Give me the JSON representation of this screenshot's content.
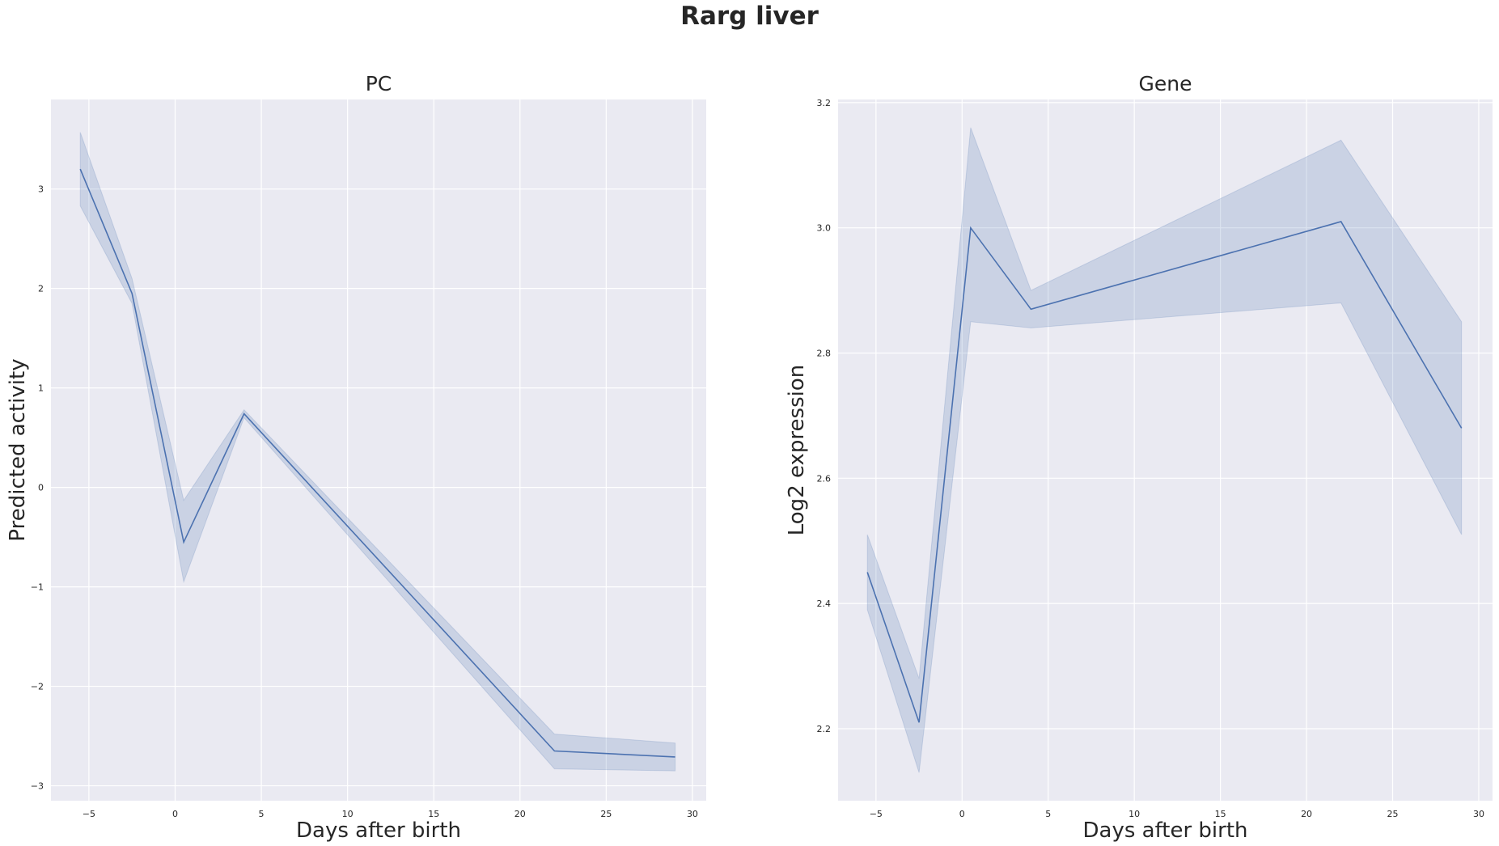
{
  "suptitle": "Rarg liver",
  "colors": {
    "line": "#4c72b0",
    "band": "#4c72b0",
    "plot_bg": "#eaeaf2",
    "grid": "#ffffff"
  },
  "chart_data": [
    {
      "type": "line",
      "title": "PC",
      "xlabel": "Days after birth",
      "ylabel": "Predicted activity",
      "xlim": [
        -7.2,
        30.8
      ],
      "ylim": [
        -3.15,
        3.9
      ],
      "xticks": [
        -5,
        0,
        5,
        10,
        15,
        20,
        25,
        30
      ],
      "yticks": [
        -3,
        -2,
        -1,
        0,
        1,
        2,
        3
      ],
      "grid": true,
      "x": [
        -5.5,
        -2.5,
        0.5,
        4,
        22,
        29
      ],
      "y": [
        3.2,
        1.95,
        -0.55,
        0.74,
        -2.65,
        -2.71
      ],
      "ci_low": [
        2.83,
        1.85,
        -0.95,
        0.7,
        -2.83,
        -2.85
      ],
      "ci_high": [
        3.57,
        2.1,
        -0.13,
        0.78,
        -2.48,
        -2.57
      ]
    },
    {
      "type": "line",
      "title": "Gene",
      "xlabel": "Days after birth",
      "ylabel": "Log2 expression",
      "xlim": [
        -7.2,
        30.8
      ],
      "ylim": [
        2.085,
        3.205
      ],
      "xticks": [
        -5,
        0,
        5,
        10,
        15,
        20,
        25,
        30
      ],
      "yticks": [
        2.2,
        2.4,
        2.6,
        2.8,
        3.0,
        3.2
      ],
      "grid": true,
      "x": [
        -5.5,
        -2.5,
        0.5,
        4,
        22,
        29
      ],
      "y": [
        2.45,
        2.21,
        3.0,
        2.87,
        3.01,
        2.68
      ],
      "ci_low": [
        2.39,
        2.13,
        2.85,
        2.84,
        2.88,
        2.51
      ],
      "ci_high": [
        2.51,
        2.28,
        3.16,
        2.9,
        3.14,
        2.85
      ]
    }
  ]
}
